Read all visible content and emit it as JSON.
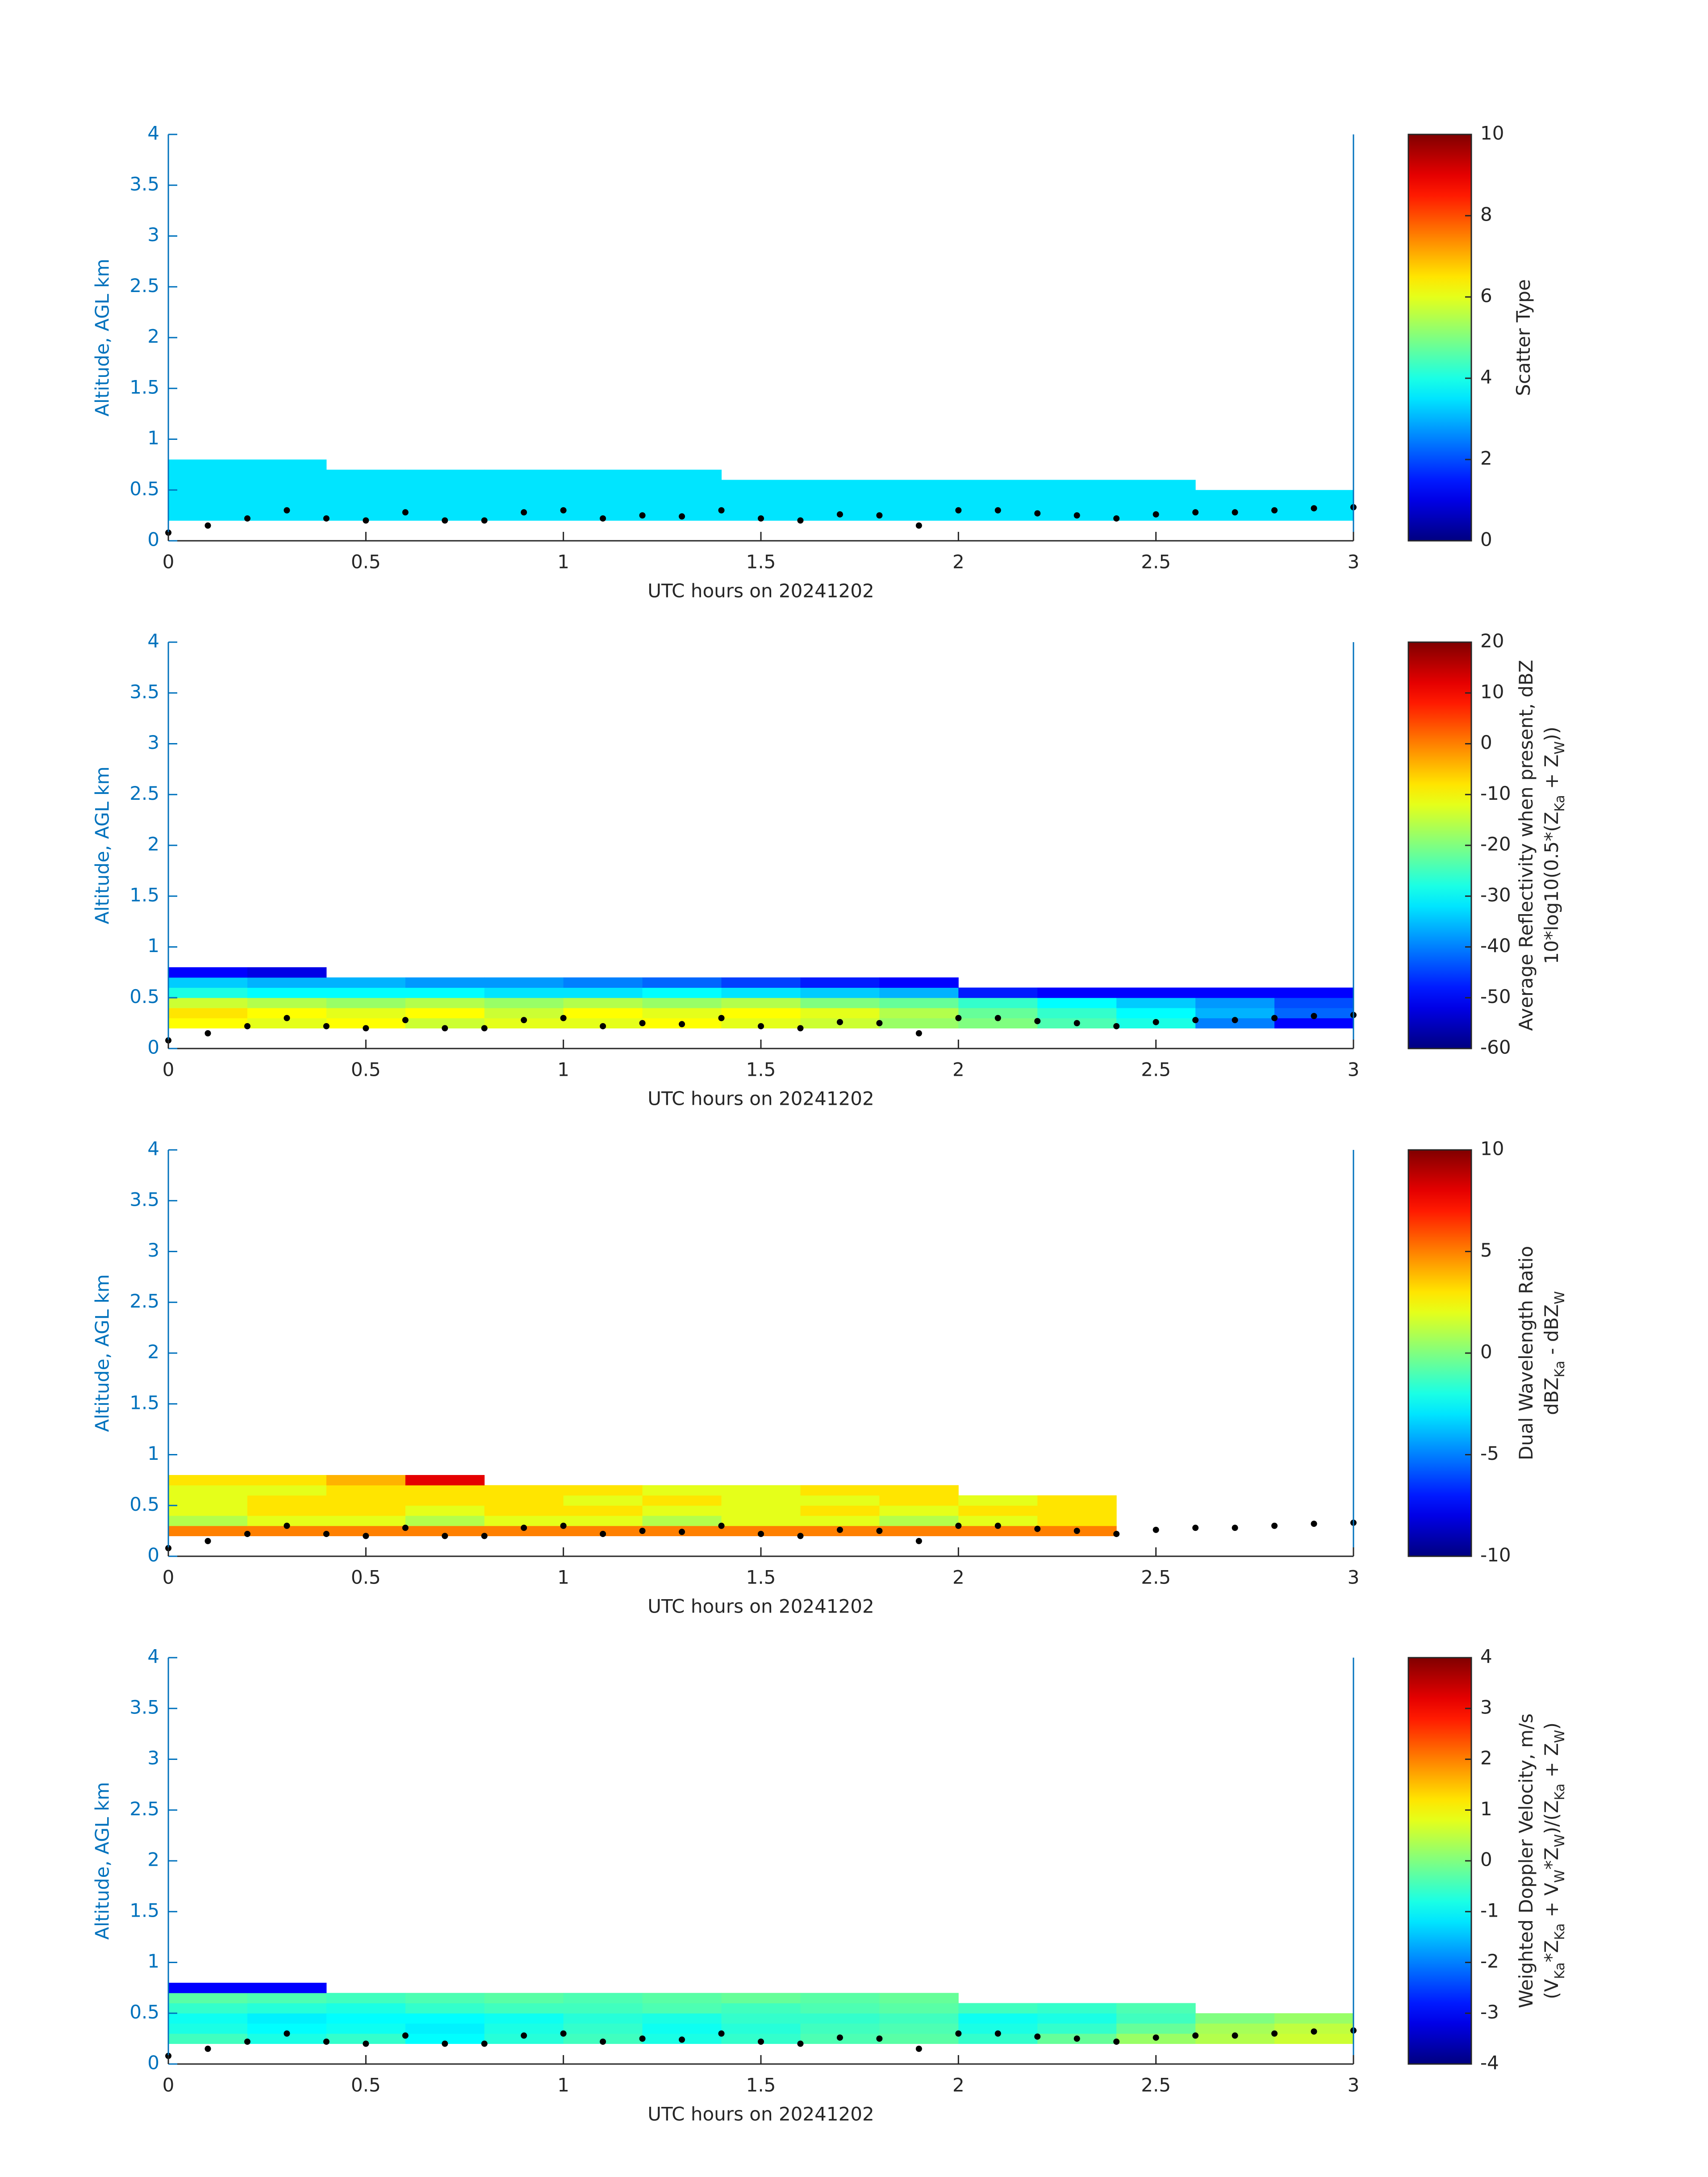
{
  "chart_data": [
    {
      "type": "heatmap",
      "xlabel": "UTC hours on 20241202",
      "ylabel": "Altitude, AGL km",
      "xlim": [
        0,
        3
      ],
      "ylim": [
        0,
        4
      ],
      "xticks": [
        0,
        0.5,
        1,
        1.5,
        2,
        2.5,
        3
      ],
      "yticks": [
        0,
        0.5,
        1,
        1.5,
        2,
        2.5,
        3,
        3.5,
        4
      ],
      "colormap": "jet",
      "clim": [
        0,
        10
      ],
      "cticks": [
        0,
        2,
        4,
        6,
        8,
        10
      ],
      "clabel": [
        [
          "Scatter Type"
        ]
      ],
      "x": [
        0,
        0.2,
        0.4,
        0.6,
        0.8,
        1.0,
        1.2,
        1.4,
        1.6,
        1.8,
        2.0,
        2.2,
        2.4,
        2.6,
        2.8,
        3.0
      ],
      "y": [
        0.2,
        0.3,
        0.4,
        0.5,
        0.6,
        0.7,
        0.8
      ],
      "z": [
        [
          3.5,
          3.5,
          3.5,
          3.5,
          3.5,
          3.5,
          3.5,
          3.5,
          3.5,
          3.5,
          3.5,
          3.5,
          3.5,
          3.5,
          3.5
        ],
        [
          3.5,
          3.5,
          3.5,
          3.5,
          3.5,
          3.5,
          3.5,
          3.5,
          3.5,
          3.5,
          3.5,
          3.5,
          3.5,
          3.5,
          3.5
        ],
        [
          3.5,
          3.5,
          3.5,
          3.5,
          3.5,
          3.5,
          3.5,
          3.5,
          3.5,
          3.5,
          3.5,
          3.5,
          3.5,
          3.5,
          3.5
        ],
        [
          3.5,
          3.5,
          3.5,
          3.5,
          3.5,
          3.5,
          3.5,
          3.5,
          3.5,
          3.5,
          3.5,
          3.5,
          3.5,
          null,
          null
        ],
        [
          3.5,
          3.5,
          3.5,
          3.5,
          3.5,
          3.5,
          3.5,
          null,
          null,
          null,
          null,
          null,
          null,
          null,
          null
        ],
        [
          3.5,
          3.5,
          null,
          null,
          null,
          null,
          null,
          null,
          null,
          null,
          null,
          null,
          null,
          null,
          null
        ]
      ],
      "points": {
        "color": "#000000",
        "x": [
          0,
          0.1,
          0.2,
          0.3,
          0.4,
          0.5,
          0.6,
          0.7,
          0.8,
          0.9,
          1.0,
          1.1,
          1.2,
          1.3,
          1.4,
          1.5,
          1.6,
          1.7,
          1.8,
          1.9,
          2.0,
          2.1,
          2.2,
          2.3,
          2.4,
          2.5,
          2.6,
          2.7,
          2.8,
          2.9,
          3.0
        ],
        "values": [
          0.08,
          0.15,
          0.22,
          0.3,
          0.22,
          0.2,
          0.28,
          0.2,
          0.2,
          0.28,
          0.3,
          0.22,
          0.25,
          0.24,
          0.3,
          0.22,
          0.2,
          0.26,
          0.25,
          0.15,
          0.3,
          0.3,
          0.27,
          0.25,
          0.22,
          0.26,
          0.28,
          0.28,
          0.3,
          0.32,
          0.33
        ]
      }
    },
    {
      "type": "heatmap",
      "xlabel": "UTC hours on 20241202",
      "ylabel": "Altitude, AGL km",
      "xlim": [
        0,
        3
      ],
      "ylim": [
        0,
        4
      ],
      "xticks": [
        0,
        0.5,
        1,
        1.5,
        2,
        2.5,
        3
      ],
      "yticks": [
        0,
        0.5,
        1,
        1.5,
        2,
        2.5,
        3,
        3.5,
        4
      ],
      "colormap": "jet",
      "clim": [
        -60,
        20
      ],
      "cticks": [
        -60,
        -50,
        -40,
        -30,
        -20,
        -10,
        0,
        10,
        20
      ],
      "clabel": [
        [
          "Average Reflectivity when present, dBZ"
        ],
        [
          "10*log10(0.5*(Z",
          {
            "sub": "Ka"
          },
          " + Z",
          {
            "sub": "W"
          },
          "))"
        ]
      ],
      "x": [
        0,
        0.2,
        0.4,
        0.6,
        0.8,
        1.0,
        1.2,
        1.4,
        1.6,
        1.8,
        2.0,
        2.2,
        2.4,
        2.6,
        2.8,
        3.0
      ],
      "y": [
        0.2,
        0.3,
        0.4,
        0.5,
        0.6,
        0.7,
        0.8
      ],
      "z": [
        [
          -10,
          -12,
          -10,
          -14,
          -12,
          -12,
          -10,
          -12,
          -14,
          -18,
          -20,
          -24,
          -28,
          -40,
          -50
        ],
        [
          -8,
          -10,
          -12,
          -10,
          -14,
          -10,
          -12,
          -10,
          -12,
          -16,
          -22,
          -26,
          -30,
          -36,
          -42
        ],
        [
          -14,
          -16,
          -18,
          -16,
          -18,
          -16,
          -18,
          -16,
          -20,
          -22,
          -26,
          -30,
          -34,
          -38,
          -44
        ],
        [
          -28,
          -30,
          -30,
          -30,
          -32,
          -32,
          -30,
          -32,
          -34,
          -36,
          -48,
          -50,
          -50,
          -50,
          -50
        ],
        [
          -34,
          -36,
          -36,
          -38,
          -38,
          -40,
          -42,
          -45,
          -48,
          -50,
          null,
          null,
          null,
          null,
          null
        ],
        [
          -50,
          -52,
          null,
          null,
          null,
          null,
          null,
          null,
          null,
          null,
          null,
          null,
          null,
          null,
          null
        ]
      ],
      "points": {
        "color": "#000000",
        "x": [
          0,
          0.1,
          0.2,
          0.3,
          0.4,
          0.5,
          0.6,
          0.7,
          0.8,
          0.9,
          1.0,
          1.1,
          1.2,
          1.3,
          1.4,
          1.5,
          1.6,
          1.7,
          1.8,
          1.9,
          2.0,
          2.1,
          2.2,
          2.3,
          2.4,
          2.5,
          2.6,
          2.7,
          2.8,
          2.9,
          3.0
        ],
        "values": [
          0.08,
          0.15,
          0.22,
          0.3,
          0.22,
          0.2,
          0.28,
          0.2,
          0.2,
          0.28,
          0.3,
          0.22,
          0.25,
          0.24,
          0.3,
          0.22,
          0.2,
          0.26,
          0.25,
          0.15,
          0.3,
          0.3,
          0.27,
          0.25,
          0.22,
          0.26,
          0.28,
          0.28,
          0.3,
          0.32,
          0.33
        ]
      }
    },
    {
      "type": "heatmap",
      "xlabel": "UTC hours on 20241202",
      "ylabel": "Altitude, AGL km",
      "xlim": [
        0,
        3
      ],
      "ylim": [
        0,
        4
      ],
      "xticks": [
        0,
        0.5,
        1,
        1.5,
        2,
        2.5,
        3
      ],
      "yticks": [
        0,
        0.5,
        1,
        1.5,
        2,
        2.5,
        3,
        3.5,
        4
      ],
      "colormap": "jet",
      "clim": [
        -10,
        10
      ],
      "cticks": [
        -10,
        -5,
        0,
        5,
        10
      ],
      "clabel": [
        [
          "Dual Wavelength Ratio"
        ],
        [
          "dBZ",
          {
            "sub": "Ka"
          },
          " - dBZ",
          {
            "sub": "W"
          }
        ]
      ],
      "x": [
        0,
        0.2,
        0.4,
        0.6,
        0.8,
        1.0,
        1.2,
        1.4,
        1.6,
        1.8,
        2.0,
        2.2,
        2.4,
        2.6,
        2.8,
        3.0
      ],
      "y": [
        0.2,
        0.3,
        0.4,
        0.5,
        0.6,
        0.7,
        0.8
      ],
      "z": [
        [
          5,
          5,
          5,
          5,
          5,
          5,
          5,
          5,
          5,
          5,
          5,
          5,
          null,
          null,
          null
        ],
        [
          1,
          2,
          2,
          1,
          2,
          2,
          1,
          2,
          2,
          1,
          2,
          3,
          null,
          null,
          null
        ],
        [
          2,
          3,
          3,
          2,
          3,
          3,
          2,
          2,
          3,
          2,
          3,
          3,
          null,
          null,
          null
        ],
        [
          2,
          3,
          3,
          3,
          3,
          2,
          3,
          2,
          2,
          3,
          2,
          3,
          null,
          null,
          null
        ],
        [
          2,
          2,
          3,
          3,
          3,
          3,
          2,
          2,
          3,
          3,
          null,
          null,
          null,
          null,
          null
        ],
        [
          3,
          3,
          4,
          8,
          null,
          null,
          null,
          null,
          null,
          null,
          null,
          null,
          null,
          null,
          null
        ]
      ],
      "points": {
        "color": "#000000",
        "x": [
          0,
          0.1,
          0.2,
          0.3,
          0.4,
          0.5,
          0.6,
          0.7,
          0.8,
          0.9,
          1.0,
          1.1,
          1.2,
          1.3,
          1.4,
          1.5,
          1.6,
          1.7,
          1.8,
          1.9,
          2.0,
          2.1,
          2.2,
          2.3,
          2.4,
          2.5,
          2.6,
          2.7,
          2.8,
          2.9,
          3.0
        ],
        "values": [
          0.08,
          0.15,
          0.22,
          0.3,
          0.22,
          0.2,
          0.28,
          0.2,
          0.2,
          0.28,
          0.3,
          0.22,
          0.25,
          0.24,
          0.3,
          0.22,
          0.2,
          0.26,
          0.25,
          0.15,
          0.3,
          0.3,
          0.27,
          0.25,
          0.22,
          0.26,
          0.28,
          0.28,
          0.3,
          0.32,
          0.33
        ]
      }
    },
    {
      "type": "heatmap",
      "xlabel": "UTC hours on 20241202",
      "ylabel": "Altitude, AGL km",
      "xlim": [
        0,
        3
      ],
      "ylim": [
        0,
        4
      ],
      "xticks": [
        0,
        0.5,
        1,
        1.5,
        2,
        2.5,
        3
      ],
      "yticks": [
        0,
        0.5,
        1,
        1.5,
        2,
        2.5,
        3,
        3.5,
        4
      ],
      "colormap": "jet",
      "clim": [
        -4,
        4
      ],
      "cticks": [
        -4,
        -3,
        -2,
        -1,
        0,
        1,
        2,
        3,
        4
      ],
      "clabel": [
        [
          "Weighted Doppler Velocity, m/s"
        ],
        [
          "(V",
          {
            "sub": "Ka"
          },
          "*Z",
          {
            "sub": "Ka"
          },
          " + V",
          {
            "sub": "W"
          },
          "*Z",
          {
            "sub": "W"
          },
          ")/(Z",
          {
            "sub": "Ka"
          },
          " + Z",
          {
            "sub": "W"
          },
          ")"
        ]
      ],
      "x": [
        0,
        0.2,
        0.4,
        0.6,
        0.8,
        1.0,
        1.2,
        1.4,
        1.6,
        1.8,
        2.0,
        2.2,
        2.4,
        2.6,
        2.8,
        3.0
      ],
      "y": [
        0.2,
        0.3,
        0.4,
        0.5,
        0.6,
        0.7,
        0.8
      ],
      "z": [
        [
          -0.5,
          -0.8,
          -0.6,
          -1,
          -0.7,
          -0.5,
          -0.8,
          -0.6,
          -0.4,
          -0.3,
          -0.6,
          -0.2,
          0.2,
          0.4,
          0.6
        ],
        [
          -0.8,
          -1,
          -0.9,
          -1.1,
          -0.8,
          -0.6,
          -0.9,
          -0.7,
          -0.5,
          -0.4,
          -0.8,
          -0.6,
          -0.2,
          0.3,
          0.5
        ],
        [
          -0.9,
          -1.1,
          -1,
          -1,
          -0.9,
          -0.7,
          -0.8,
          -0.6,
          -0.6,
          -0.5,
          -0.9,
          -0.8,
          -0.5,
          0,
          0.2
        ],
        [
          -0.6,
          -0.7,
          -0.8,
          -0.6,
          -0.5,
          -0.5,
          -0.4,
          -0.5,
          -0.4,
          -0.3,
          -0.5,
          -0.6,
          -0.4,
          null,
          null
        ],
        [
          -0.3,
          -0.4,
          -0.5,
          -0.4,
          -0.3,
          -0.4,
          -0.3,
          -0.2,
          -0.3,
          -0.2,
          null,
          null,
          null,
          null,
          null
        ],
        [
          -3,
          -3,
          null,
          null,
          null,
          null,
          null,
          null,
          null,
          null,
          null,
          null,
          null,
          null,
          null
        ]
      ],
      "points": {
        "color": "#000000",
        "x": [
          0,
          0.1,
          0.2,
          0.3,
          0.4,
          0.5,
          0.6,
          0.7,
          0.8,
          0.9,
          1.0,
          1.1,
          1.2,
          1.3,
          1.4,
          1.5,
          1.6,
          1.7,
          1.8,
          1.9,
          2.0,
          2.1,
          2.2,
          2.3,
          2.4,
          2.5,
          2.6,
          2.7,
          2.8,
          2.9,
          3.0
        ],
        "values": [
          0.08,
          0.15,
          0.22,
          0.3,
          0.22,
          0.2,
          0.28,
          0.2,
          0.2,
          0.28,
          0.3,
          0.22,
          0.25,
          0.24,
          0.3,
          0.22,
          0.2,
          0.26,
          0.25,
          0.15,
          0.3,
          0.3,
          0.27,
          0.25,
          0.22,
          0.26,
          0.28,
          0.28,
          0.3,
          0.32,
          0.33
        ]
      }
    }
  ]
}
